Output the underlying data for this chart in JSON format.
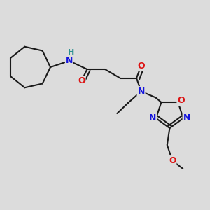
{
  "bg_color": "#dcdcdc",
  "bond_color": "#1a1a1a",
  "bond_lw": 1.5,
  "atom_colors": {
    "N": "#1414dd",
    "O": "#dd1414",
    "H": "#2a9090"
  },
  "fontsize": 9,
  "figsize": [
    3.0,
    3.0
  ],
  "dpi": 100
}
